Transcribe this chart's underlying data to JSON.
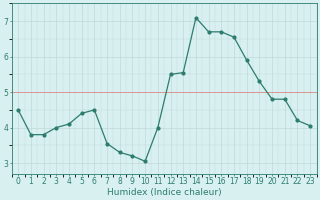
{
  "x": [
    0,
    1,
    2,
    3,
    4,
    5,
    6,
    7,
    8,
    9,
    10,
    11,
    12,
    13,
    14,
    15,
    16,
    17,
    18,
    19,
    20,
    21,
    22,
    23
  ],
  "y": [
    4.5,
    3.8,
    3.8,
    4.0,
    4.1,
    4.4,
    4.5,
    3.55,
    3.3,
    3.2,
    3.05,
    4.0,
    5.5,
    5.55,
    7.1,
    6.7,
    6.7,
    6.55,
    5.9,
    5.3,
    4.8,
    4.8,
    4.2,
    4.05
  ],
  "line_color": "#2d7d6e",
  "marker": "o",
  "marker_size": 2.0,
  "linewidth": 0.9,
  "bg_color": "#d8f0f0",
  "grid_color": "#c0d8d8",
  "red_line_color": "#e08888",
  "xlabel": "Humidex (Indice chaleur)",
  "xlabel_fontsize": 6.5,
  "tick_fontsize": 5.5,
  "ylim": [
    2.7,
    7.5
  ],
  "xlim": [
    -0.5,
    23.5
  ],
  "yticks": [
    3,
    4,
    5,
    6,
    7
  ],
  "xticks": [
    0,
    1,
    2,
    3,
    4,
    5,
    6,
    7,
    8,
    9,
    10,
    11,
    12,
    13,
    14,
    15,
    16,
    17,
    18,
    19,
    20,
    21,
    22,
    23
  ]
}
